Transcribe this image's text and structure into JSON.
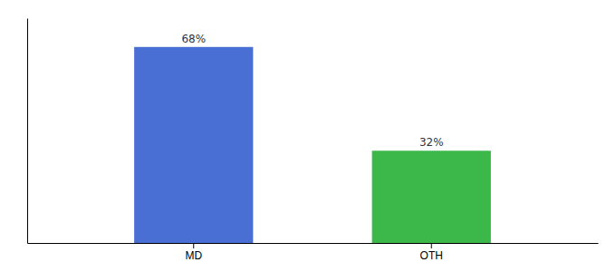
{
  "chart_data": {
    "type": "bar",
    "categories": [
      "MD",
      "OTH"
    ],
    "values": [
      68,
      32
    ],
    "value_labels": [
      "68%",
      "32%"
    ],
    "colors": [
      "#4a6fd4",
      "#3cb84a"
    ],
    "ylim": [
      0,
      78
    ],
    "data_labels": true,
    "tick_labels": "x"
  }
}
